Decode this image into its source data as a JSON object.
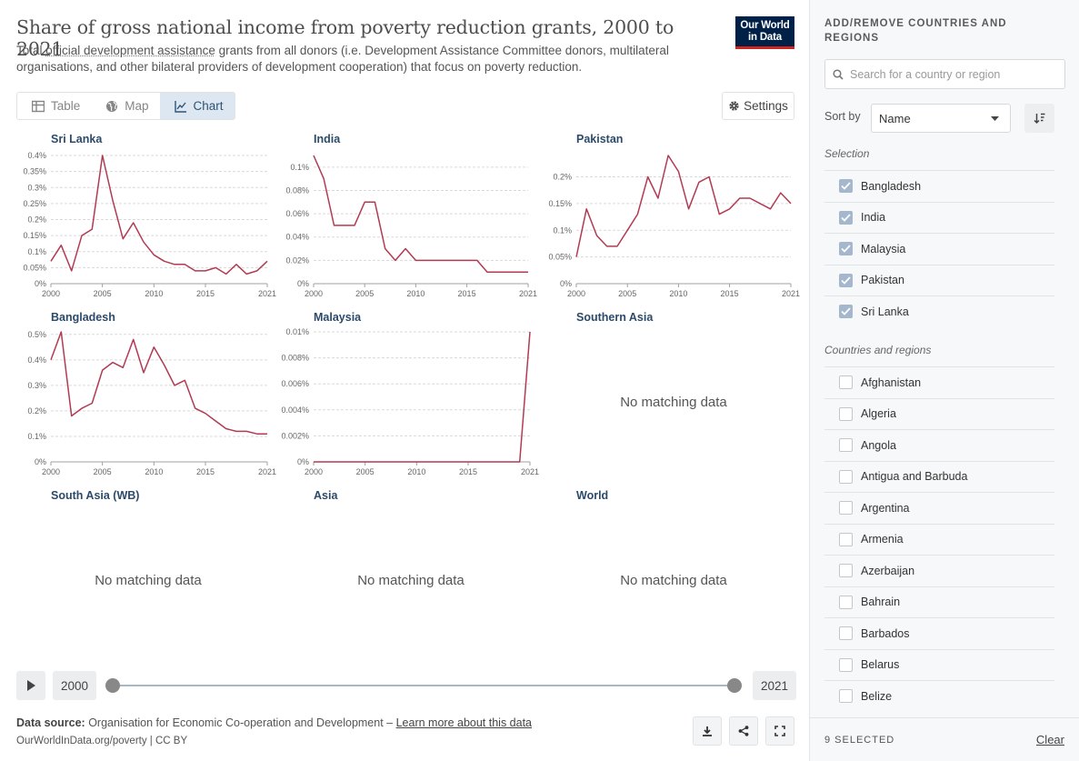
{
  "header": {
    "title": "Share of gross national income from poverty reduction grants, 2000 to 2021",
    "subtitle_pre": "Total ",
    "subtitle_link": "official development assistance",
    "subtitle_post": " grants from all donors (i.e. Development Assistance Committee donors, multilateral organisations, and other bilateral providers of development cooperation) that focus on poverty reduction.",
    "logo_line1": "Our World",
    "logo_line2": "in Data"
  },
  "tabs": [
    {
      "label": "Table",
      "icon": "table-icon"
    },
    {
      "label": "Map",
      "icon": "globe-icon"
    },
    {
      "label": "Chart",
      "icon": "line-chart-icon",
      "active": true
    }
  ],
  "settings_label": "Settings",
  "line_color": "#b13b53",
  "no_data_text": "No matching data",
  "chart_data": [
    {
      "type": "line",
      "title": "Sri Lanka",
      "x": [
        2000,
        2001,
        2002,
        2003,
        2004,
        2005,
        2006,
        2007,
        2008,
        2009,
        2010,
        2011,
        2012,
        2013,
        2014,
        2015,
        2016,
        2017,
        2018,
        2019,
        2020,
        2021
      ],
      "values": [
        0.07,
        0.12,
        0.04,
        0.15,
        0.17,
        0.4,
        0.26,
        0.14,
        0.19,
        0.13,
        0.09,
        0.07,
        0.06,
        0.06,
        0.04,
        0.04,
        0.05,
        0.03,
        0.06,
        0.03,
        0.04,
        0.07
      ],
      "ylim": [
        0,
        0.4
      ],
      "yticks": [
        0,
        0.05,
        0.1,
        0.15,
        0.2,
        0.25,
        0.3,
        0.35,
        0.4
      ],
      "ytick_labels": [
        "0%",
        "0.05%",
        "0.1%",
        "0.15%",
        "0.2%",
        "0.25%",
        "0.3%",
        "0.35%",
        "0.4%"
      ],
      "xticks": [
        2000,
        2005,
        2010,
        2015,
        2021
      ]
    },
    {
      "type": "line",
      "title": "India",
      "x": [
        2000,
        2001,
        2002,
        2003,
        2004,
        2005,
        2006,
        2007,
        2008,
        2009,
        2010,
        2011,
        2012,
        2013,
        2014,
        2015,
        2016,
        2017,
        2018,
        2019,
        2020,
        2021
      ],
      "values": [
        0.11,
        0.09,
        0.05,
        0.05,
        0.05,
        0.07,
        0.07,
        0.03,
        0.02,
        0.03,
        0.02,
        0.02,
        0.02,
        0.02,
        0.02,
        0.02,
        0.02,
        0.01,
        0.01,
        0.01,
        0.01,
        0.01
      ],
      "ylim": [
        0,
        0.11
      ],
      "yticks": [
        0,
        0.02,
        0.04,
        0.06,
        0.08,
        0.1
      ],
      "ytick_labels": [
        "0%",
        "0.02%",
        "0.04%",
        "0.06%",
        "0.08%",
        "0.1%"
      ],
      "xticks": [
        2000,
        2005,
        2010,
        2015,
        2021
      ]
    },
    {
      "type": "line",
      "title": "Pakistan",
      "x": [
        2000,
        2001,
        2002,
        2003,
        2004,
        2005,
        2006,
        2007,
        2008,
        2009,
        2010,
        2011,
        2012,
        2013,
        2014,
        2015,
        2016,
        2017,
        2018,
        2019,
        2020,
        2021
      ],
      "values": [
        0.05,
        0.14,
        0.09,
        0.07,
        0.07,
        0.1,
        0.13,
        0.2,
        0.16,
        0.24,
        0.21,
        0.14,
        0.19,
        0.2,
        0.13,
        0.14,
        0.16,
        0.16,
        0.15,
        0.14,
        0.17,
        0.15
      ],
      "ylim": [
        0,
        0.24
      ],
      "yticks": [
        0,
        0.05,
        0.1,
        0.15,
        0.2
      ],
      "ytick_labels": [
        "0%",
        "0.05%",
        "0.1%",
        "0.15%",
        "0.2%"
      ],
      "xticks": [
        2000,
        2005,
        2010,
        2015,
        2021
      ]
    },
    {
      "type": "line",
      "title": "Bangladesh",
      "x": [
        2000,
        2001,
        2002,
        2003,
        2004,
        2005,
        2006,
        2007,
        2008,
        2009,
        2010,
        2011,
        2012,
        2013,
        2014,
        2015,
        2016,
        2017,
        2018,
        2019,
        2020,
        2021
      ],
      "values": [
        0.4,
        0.51,
        0.18,
        0.21,
        0.23,
        0.36,
        0.39,
        0.37,
        0.48,
        0.35,
        0.45,
        0.38,
        0.3,
        0.32,
        0.21,
        0.19,
        0.16,
        0.13,
        0.12,
        0.12,
        0.11,
        0.11
      ],
      "ylim": [
        0,
        0.51
      ],
      "yticks": [
        0,
        0.1,
        0.2,
        0.3,
        0.4,
        0.5
      ],
      "ytick_labels": [
        "0%",
        "0.1%",
        "0.2%",
        "0.3%",
        "0.4%",
        "0.5%"
      ],
      "xticks": [
        2000,
        2005,
        2010,
        2015,
        2021
      ]
    },
    {
      "type": "line",
      "title": "Malaysia",
      "x": [
        2000,
        2001,
        2002,
        2003,
        2004,
        2005,
        2006,
        2007,
        2008,
        2009,
        2010,
        2011,
        2012,
        2013,
        2014,
        2015,
        2016,
        2017,
        2018,
        2019,
        2020,
        2021
      ],
      "values": [
        0,
        0,
        0,
        0,
        0,
        0,
        0,
        0,
        0,
        0,
        0,
        0,
        0,
        0,
        0,
        0,
        0,
        0,
        0,
        0,
        0,
        0.01
      ],
      "ylim": [
        0,
        0.01
      ],
      "yticks": [
        0,
        0.002,
        0.004,
        0.006,
        0.008,
        0.01
      ],
      "ytick_labels": [
        "0%",
        "0.002%",
        "0.004%",
        "0.006%",
        "0.008%",
        "0.01%"
      ],
      "xticks": [
        2000,
        2005,
        2010,
        2015,
        2021
      ]
    },
    {
      "type": "line",
      "title": "Southern Asia",
      "no_data": true
    },
    {
      "type": "line",
      "title": "South Asia (WB)",
      "no_data": true
    },
    {
      "type": "line",
      "title": "Asia",
      "no_data": true
    },
    {
      "type": "line",
      "title": "World",
      "no_data": true
    }
  ],
  "timeline": {
    "start": "2000",
    "end": "2021"
  },
  "footer": {
    "source_label": "Data source:",
    "source_text": " Organisation for Economic Co-operation and Development – ",
    "learn_more": "Learn more about this data",
    "credit": "OurWorldInData.org/poverty | CC BY"
  },
  "sidebar": {
    "title": "ADD/REMOVE COUNTRIES AND REGIONS",
    "search_placeholder": "Search for a country or region",
    "sort_label": "Sort by",
    "sort_value": "Name",
    "selection_label": "Selection",
    "selected": [
      "Bangladesh",
      "India",
      "Malaysia",
      "Pakistan",
      "Sri Lanka"
    ],
    "countries_label": "Countries and regions",
    "countries": [
      "Afghanistan",
      "Algeria",
      "Angola",
      "Antigua and Barbuda",
      "Argentina",
      "Armenia",
      "Azerbaijan",
      "Bahrain",
      "Barbados",
      "Belarus",
      "Belize"
    ],
    "selected_count": "9 SELECTED",
    "clear_label": "Clear"
  }
}
